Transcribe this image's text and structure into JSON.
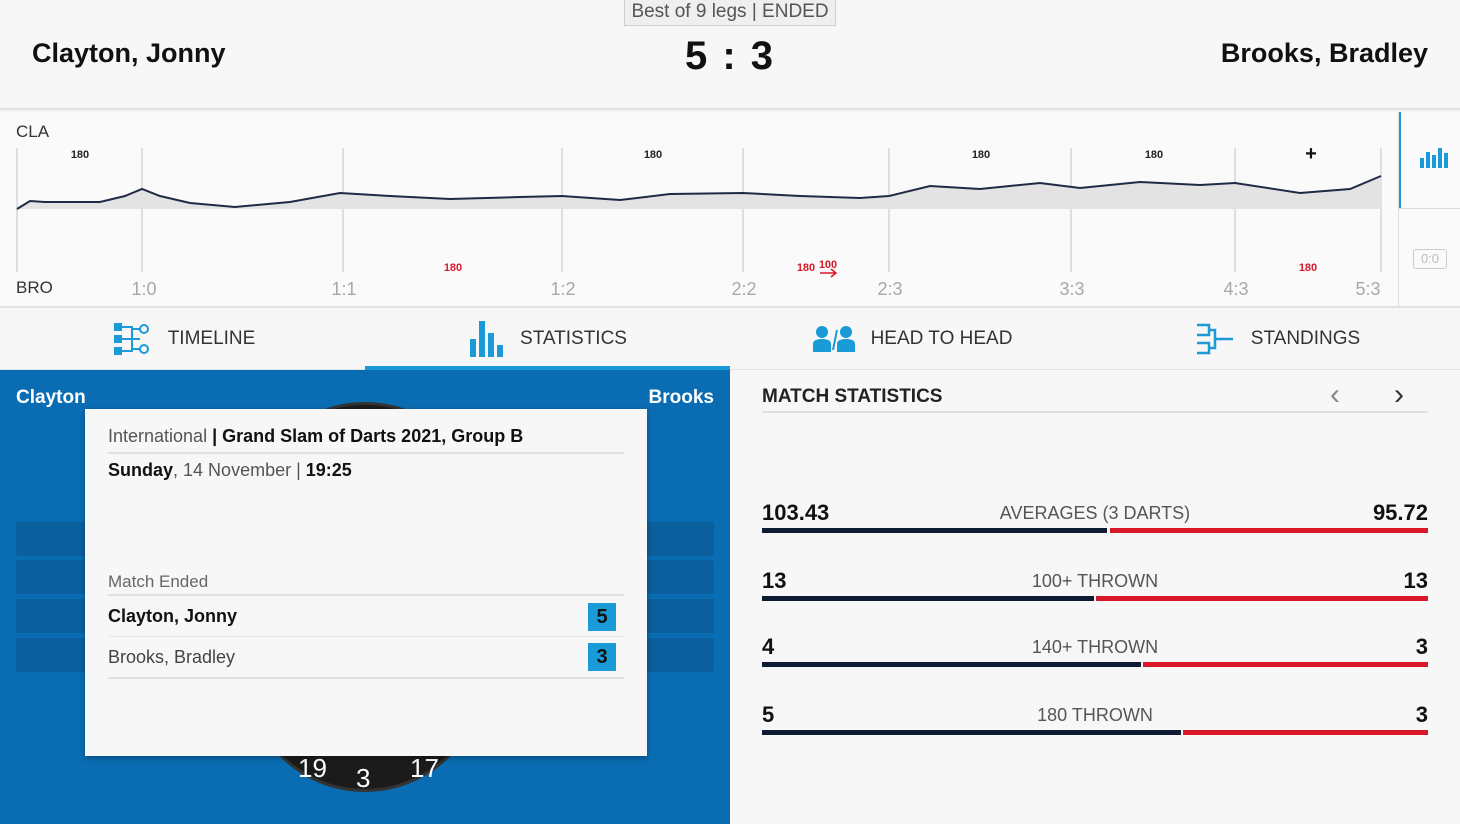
{
  "header": {
    "format": "Best of 9 legs | ENDED",
    "player_left": "Clayton, Jonny",
    "player_right": "Brooks, Bradley",
    "score": "5 : 3"
  },
  "timeline_graph": {
    "top_tag": "CLA",
    "bottom_tag": "BRO",
    "leg_scores": [
      "1:0",
      "1:1",
      "1:2",
      "2:2",
      "2:3",
      "3:3",
      "4:3",
      "5:3"
    ],
    "top_markers": [
      "180",
      "180",
      "180",
      "180",
      "+"
    ],
    "bottom_markers": [
      "180",
      "180",
      "100",
      "180"
    ],
    "side_box": "0:0"
  },
  "tabs": [
    {
      "label": "TIMELINE",
      "icon": "timeline-icon",
      "active": false
    },
    {
      "label": "STATISTICS",
      "icon": "bar-chart-icon",
      "active": true
    },
    {
      "label": "HEAD TO HEAD",
      "icon": "head-to-head-icon",
      "active": false
    },
    {
      "label": "STANDINGS",
      "icon": "standings-icon",
      "active": false
    }
  ],
  "dartboard_panel": {
    "name_left": "Clayton",
    "name_right": "Brooks",
    "board_numbers": [
      "19",
      "3",
      "17"
    ]
  },
  "match_info": {
    "category": "International",
    "tournament": "Grand Slam of Darts 2021, Group B",
    "day": "Sunday",
    "date": "14 November",
    "time": "19:25",
    "status": "Match Ended",
    "rows": [
      {
        "name": "Clayton, Jonny",
        "score": "5"
      },
      {
        "name": "Brooks, Bradley",
        "score": "3"
      }
    ]
  },
  "stats": {
    "title": "MATCH STATISTICS",
    "rows": [
      {
        "label": "AVERAGES (3 DARTS)",
        "left": "103.43",
        "right": "95.72"
      },
      {
        "label": "100+ THROWN",
        "left": "13",
        "right": "13"
      },
      {
        "label": "140+ THROWN",
        "left": "4",
        "right": "3"
      },
      {
        "label": "180 THROWN",
        "left": "5",
        "right": "3"
      }
    ]
  },
  "colors": {
    "accent": "#1a9ad6",
    "panel_blue": "#0a6db3",
    "bar_left": "#0f1a33",
    "bar_right": "#d9182a"
  }
}
